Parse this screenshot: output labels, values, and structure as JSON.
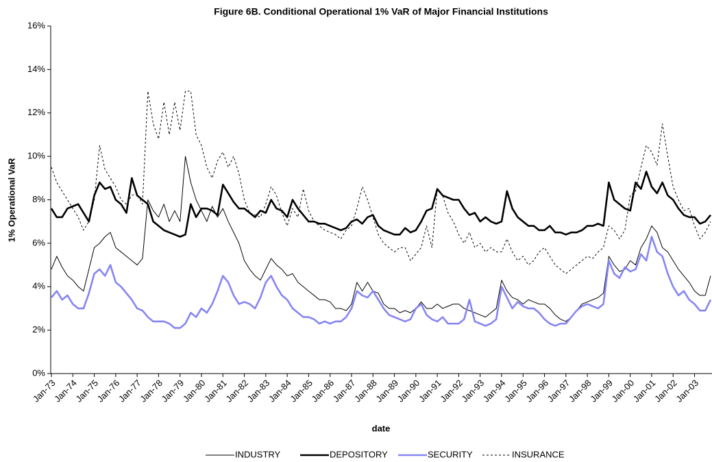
{
  "chart_data": {
    "type": "line",
    "title": "Figure 6B.  Conditional Operational 1% VaR of Major Financial Institutions",
    "x_label": "date",
    "y_label": "1% Operational VaR",
    "categories": [
      "Jan-73",
      null,
      null,
      null,
      "Jan-74",
      null,
      null,
      null,
      "Jan-75",
      null,
      null,
      null,
      "Jan-76",
      null,
      null,
      null,
      "Jan-77",
      null,
      null,
      null,
      "Jan-78",
      null,
      null,
      null,
      "Jan-79",
      null,
      null,
      null,
      "Jan-80",
      null,
      null,
      null,
      "Jan-81",
      null,
      null,
      null,
      "Jan-82",
      null,
      null,
      null,
      "Jan-83",
      null,
      null,
      null,
      "Jan-84",
      null,
      null,
      null,
      "Jan-85",
      null,
      null,
      null,
      "Jan-86",
      null,
      null,
      null,
      "Jan-87",
      null,
      null,
      null,
      "Jan-88",
      null,
      null,
      null,
      "Jan-89",
      null,
      null,
      null,
      "Jan-90",
      null,
      null,
      null,
      "Jan-91",
      null,
      null,
      null,
      "Jan-92",
      null,
      null,
      null,
      "Jan-93",
      null,
      null,
      null,
      "Jan-94",
      null,
      null,
      null,
      "Jan-95",
      null,
      null,
      null,
      "Jan-96",
      null,
      null,
      null,
      "Jan-97",
      null,
      null,
      null,
      "Jan-98",
      null,
      null,
      null,
      "Jan-99",
      null,
      null,
      null,
      "Jan-00",
      null,
      null,
      null,
      "Jan-01",
      null,
      null,
      null,
      "Jan-02",
      null,
      null,
      null,
      "Jan-03",
      null,
      null,
      null
    ],
    "series": [
      {
        "name": "INDUSTRY",
        "color": "#000000",
        "width": 1,
        "dash": "none",
        "values": [
          4.8,
          5.4,
          4.9,
          4.5,
          4.3,
          4.0,
          3.8,
          4.8,
          5.8,
          6.0,
          6.3,
          6.5,
          5.8,
          5.6,
          5.4,
          5.2,
          5.0,
          5.3,
          8.0,
          7.5,
          7.2,
          7.8,
          7.0,
          7.5,
          7.0,
          10.0,
          8.8,
          8.0,
          7.5,
          7.0,
          7.7,
          7.2,
          7.6,
          7.0,
          6.5,
          6.0,
          5.2,
          4.8,
          4.5,
          4.3,
          4.8,
          5.3,
          5.0,
          4.8,
          4.5,
          4.6,
          4.2,
          4.0,
          3.8,
          3.6,
          3.4,
          3.4,
          3.3,
          3.0,
          3.0,
          2.9,
          3.2,
          4.2,
          3.8,
          4.2,
          3.8,
          3.7,
          3.2,
          3.0,
          3.0,
          2.8,
          2.9,
          2.8,
          3.0,
          3.3,
          3.0,
          3.0,
          3.2,
          3.0,
          3.1,
          3.2,
          3.2,
          3.0,
          2.9,
          2.8,
          2.7,
          2.6,
          2.8,
          3.0,
          4.3,
          3.8,
          3.5,
          3.4,
          3.2,
          3.4,
          3.3,
          3.2,
          3.2,
          3.0,
          2.7,
          2.5,
          2.4,
          2.6,
          2.9,
          3.2,
          3.3,
          3.4,
          3.5,
          3.7,
          5.4,
          5.0,
          4.7,
          4.8,
          5.2,
          5.0,
          5.8,
          6.2,
          6.8,
          6.5,
          5.8,
          5.6,
          5.2,
          4.8,
          4.5,
          4.2,
          3.8,
          3.6,
          3.6,
          4.5
        ]
      },
      {
        "name": "DEPOSITORY",
        "color": "#000000",
        "width": 2.6,
        "dash": "none",
        "values": [
          7.6,
          7.2,
          7.2,
          7.6,
          7.7,
          7.8,
          7.4,
          7.0,
          8.2,
          8.8,
          8.5,
          8.6,
          8.0,
          7.8,
          7.4,
          9.0,
          8.2,
          8.0,
          7.8,
          7.0,
          6.8,
          6.6,
          6.5,
          6.4,
          6.3,
          6.4,
          7.8,
          7.2,
          7.6,
          7.6,
          7.5,
          7.3,
          8.7,
          8.3,
          7.9,
          7.6,
          7.6,
          7.4,
          7.2,
          7.5,
          7.4,
          8.0,
          7.6,
          7.5,
          7.2,
          8.0,
          7.6,
          7.3,
          7.0,
          7.0,
          6.9,
          6.9,
          6.8,
          6.7,
          6.6,
          6.7,
          7.0,
          7.1,
          6.9,
          7.2,
          7.3,
          6.8,
          6.6,
          6.5,
          6.4,
          6.4,
          6.7,
          6.5,
          6.6,
          7.0,
          7.5,
          7.6,
          8.5,
          8.2,
          8.1,
          8.0,
          8.0,
          7.6,
          7.3,
          7.4,
          7.0,
          7.2,
          7.0,
          6.9,
          7.0,
          8.4,
          7.6,
          7.2,
          7.0,
          6.8,
          6.8,
          6.6,
          6.6,
          6.8,
          6.5,
          6.5,
          6.4,
          6.5,
          6.5,
          6.6,
          6.8,
          6.8,
          6.9,
          6.8,
          8.8,
          8.0,
          7.8,
          7.6,
          7.5,
          8.8,
          8.5,
          9.3,
          8.6,
          8.3,
          8.8,
          8.2,
          8.0,
          7.6,
          7.3,
          7.2,
          7.2,
          6.9,
          7.0,
          7.3
        ]
      },
      {
        "name": "SECURITY",
        "color": "#8585f2",
        "width": 2.6,
        "dash": "none",
        "values": [
          3.5,
          3.8,
          3.4,
          3.6,
          3.2,
          3.0,
          3.0,
          3.7,
          4.6,
          4.8,
          4.5,
          5.0,
          4.2,
          4.0,
          3.7,
          3.4,
          3.0,
          2.9,
          2.6,
          2.4,
          2.4,
          2.4,
          2.3,
          2.1,
          2.1,
          2.3,
          2.8,
          2.6,
          3.0,
          2.8,
          3.2,
          3.8,
          4.5,
          4.2,
          3.6,
          3.2,
          3.3,
          3.2,
          3.0,
          3.5,
          4.2,
          4.5,
          4.0,
          3.6,
          3.4,
          3.0,
          2.8,
          2.6,
          2.6,
          2.5,
          2.3,
          2.4,
          2.3,
          2.4,
          2.4,
          2.6,
          3.0,
          3.8,
          3.6,
          3.5,
          3.8,
          3.4,
          3.0,
          2.7,
          2.6,
          2.5,
          2.4,
          2.5,
          3.0,
          3.2,
          2.7,
          2.5,
          2.4,
          2.6,
          2.3,
          2.3,
          2.3,
          2.5,
          3.4,
          2.4,
          2.3,
          2.2,
          2.3,
          2.5,
          4.0,
          3.5,
          3.0,
          3.3,
          3.1,
          3.0,
          3.0,
          2.8,
          2.5,
          2.3,
          2.2,
          2.3,
          2.3,
          2.6,
          2.9,
          3.1,
          3.2,
          3.1,
          3.0,
          3.2,
          5.2,
          4.6,
          4.4,
          4.9,
          4.7,
          4.8,
          5.5,
          5.2,
          6.3,
          5.6,
          5.4,
          4.6,
          4.0,
          3.6,
          3.8,
          3.4,
          3.2,
          2.9,
          2.9,
          3.4
        ]
      },
      {
        "name": "INSURANCE",
        "color": "#000000",
        "width": 1,
        "dash": "3,3",
        "values": [
          9.5,
          8.8,
          8.4,
          8.0,
          7.6,
          7.2,
          6.6,
          7.0,
          8.0,
          10.5,
          9.4,
          9.0,
          8.6,
          8.0,
          7.8,
          8.2,
          8.3,
          7.8,
          13.0,
          11.5,
          10.8,
          12.5,
          11.0,
          12.5,
          11.2,
          13.0,
          13.0,
          11.0,
          10.5,
          9.5,
          9.0,
          9.8,
          10.2,
          9.5,
          10.0,
          9.2,
          8.0,
          7.4,
          7.3,
          7.2,
          7.8,
          8.6,
          8.2,
          7.4,
          6.8,
          7.6,
          7.2,
          8.5,
          7.5,
          7.0,
          6.8,
          6.6,
          6.5,
          6.4,
          6.2,
          6.6,
          6.8,
          7.6,
          8.6,
          8.0,
          7.2,
          6.4,
          6.0,
          5.8,
          5.6,
          5.8,
          5.8,
          5.2,
          5.5,
          5.8,
          6.8,
          5.8,
          8.5,
          8.2,
          7.4,
          7.0,
          6.4,
          6.0,
          6.5,
          5.8,
          6.0,
          5.6,
          5.8,
          5.6,
          5.6,
          6.2,
          5.6,
          5.2,
          5.4,
          5.0,
          5.2,
          5.6,
          5.8,
          5.4,
          5.0,
          4.8,
          4.6,
          4.8,
          5.0,
          5.2,
          5.4,
          5.3,
          5.6,
          5.8,
          6.8,
          6.6,
          6.2,
          6.6,
          8.2,
          8.4,
          9.5,
          10.5,
          10.2,
          9.6,
          11.5,
          10.0,
          8.6,
          8.0,
          7.5,
          7.6,
          6.8,
          6.2,
          6.5,
          7.0
        ]
      }
    ],
    "ylim": [
      0,
      16
    ],
    "yticks": [
      {
        "value": 0,
        "label": "0%"
      },
      {
        "value": 2,
        "label": "2%"
      },
      {
        "value": 4,
        "label": "4%"
      },
      {
        "value": 6,
        "label": "6%"
      },
      {
        "value": 8,
        "label": "8%"
      },
      {
        "value": 10,
        "label": "10%"
      },
      {
        "value": 12,
        "label": "12%"
      },
      {
        "value": 14,
        "label": "14%"
      },
      {
        "value": 16,
        "label": "16%"
      }
    ],
    "grid": false,
    "legend": "bottom"
  }
}
